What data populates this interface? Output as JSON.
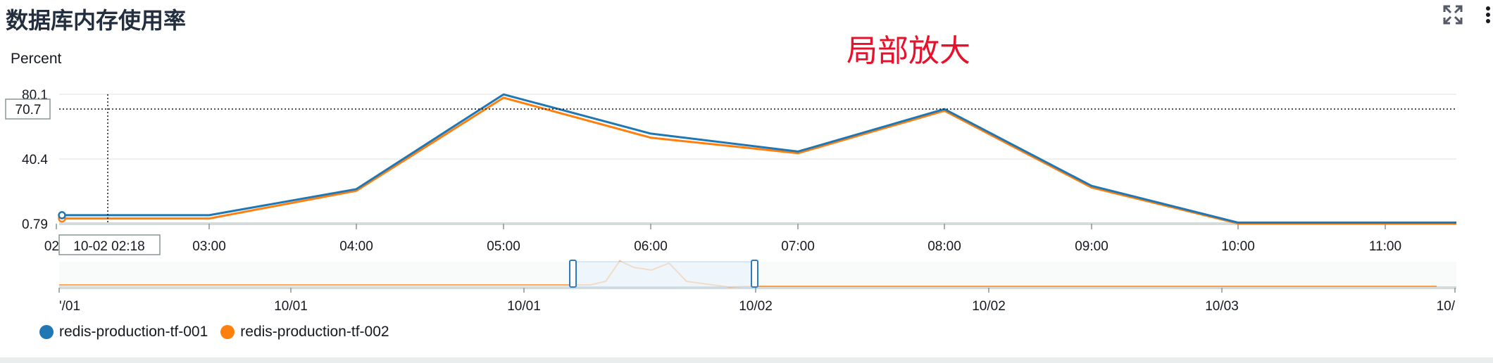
{
  "widget": {
    "title": "数据库内存使用率",
    "unit": "Percent",
    "annotation": "局部放大",
    "expand_icon": "expand-icon",
    "menu_icon": "vertical-dots-icon"
  },
  "colors": {
    "series1": "#1f77b4",
    "series2": "#ff7f0e",
    "grid": "#e9ebed",
    "axis": "#d5dbdb",
    "annotation": "#e8102a",
    "overview_window_fill": "#eaf3fb",
    "overview_window_stroke": "#2d7ac7"
  },
  "chart_data": {
    "type": "line",
    "unit": "Percent",
    "x": [
      "02:18",
      "03:00",
      "04:00",
      "05:00",
      "06:00",
      "07:00",
      "08:00",
      "09:00",
      "10:00",
      "11:00",
      "11:30"
    ],
    "ylim": [
      0.79,
      80.1
    ],
    "y_ticks": [
      "0.79",
      "40.4",
      "80.1"
    ],
    "x_tick_labels": [
      "02",
      "03:00",
      "04:00",
      "05:00",
      "06:00",
      "07:00",
      "08:00",
      "09:00",
      "10:00",
      "11:00"
    ],
    "series": [
      {
        "name": "redis-production-tf-001",
        "values": [
          6.0,
          6.0,
          22.0,
          80.0,
          56.0,
          45.0,
          71.0,
          24.0,
          1.5,
          1.5,
          1.5
        ]
      },
      {
        "name": "redis-production-tf-002",
        "values": [
          4.0,
          4.0,
          21.0,
          78.0,
          53.5,
          44.0,
          70.0,
          23.0,
          0.9,
          0.9,
          0.9
        ]
      }
    ],
    "crosshair": {
      "y_value": "70.7",
      "x_value": "10-02 02:18"
    },
    "grid": true,
    "legend_position": "bottom-left",
    "overview": {
      "x_tick_labels": [
        "'/01",
        "10/01",
        "10/01",
        "10/02",
        "10/02",
        "10/03",
        "10/"
      ]
    }
  }
}
